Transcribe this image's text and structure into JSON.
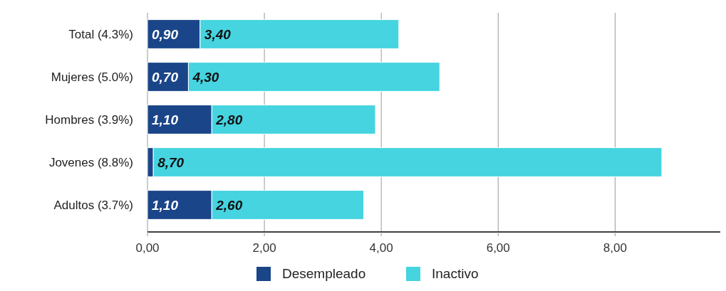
{
  "chart_data": {
    "type": "bar",
    "orientation": "horizontal",
    "stacked": true,
    "categories": [
      "Total (4.3%)",
      "Mujeres (5.0%)",
      "Hombres (3.9%)",
      "Jovenes (8.8%)",
      "Adultos (3.7%)"
    ],
    "series": [
      {
        "name": "Desempleado",
        "color": "#1a4589",
        "values": [
          0.9,
          0.7,
          1.1,
          0.1,
          1.1
        ],
        "value_labels": [
          "0,90",
          "0,70",
          "1,10",
          null,
          "1,10"
        ]
      },
      {
        "name": "Inactivo",
        "color": "#45d4e0",
        "values": [
          3.4,
          4.3,
          2.8,
          8.7,
          2.6
        ],
        "value_labels": [
          "3,40",
          "4,30",
          "2,80",
          "8,70",
          "2,60"
        ]
      }
    ],
    "xlim": [
      0,
      9.8
    ],
    "xticks": [
      {
        "value": 0,
        "label": "0,00"
      },
      {
        "value": 2,
        "label": "2,00"
      },
      {
        "value": 4,
        "label": "4,00"
      },
      {
        "value": 6,
        "label": "6,00"
      },
      {
        "value": 8,
        "label": "8,00"
      }
    ],
    "grid": "x",
    "legend": "bottom"
  }
}
